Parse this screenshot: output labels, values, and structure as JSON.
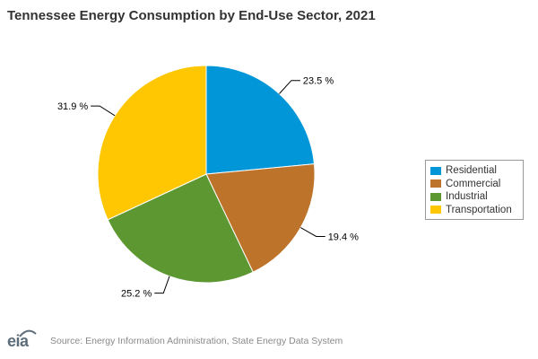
{
  "chart_data": {
    "type": "pie",
    "title": "Tennessee Energy Consumption by End-Use Sector, 2021",
    "categories": [
      "Residential",
      "Commercial",
      "Industrial",
      "Transportation"
    ],
    "values": [
      23.5,
      19.4,
      25.2,
      31.9
    ],
    "labels": [
      "23.5 %",
      "19.4 %",
      "25.2 %",
      "31.9 %"
    ],
    "colors": [
      "#0096d7",
      "#bd732a",
      "#5d9732",
      "#ffc702"
    ],
    "legend_position": "right",
    "start_angle_deg": 0,
    "direction": "clockwise"
  },
  "footer": {
    "logo_text": "eia",
    "source": "Source: Energy Information Administration, State Energy Data System"
  }
}
